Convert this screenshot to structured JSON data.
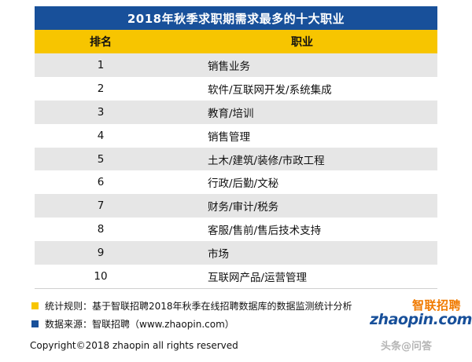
{
  "title": "2018年秋季求职期需求最多的十大职业",
  "headers": {
    "rank": "排名",
    "job": "职业"
  },
  "rows": [
    {
      "rank": "1",
      "job": "销售业务"
    },
    {
      "rank": "2",
      "job": "软件/互联网开发/系统集成"
    },
    {
      "rank": "3",
      "job": "教育/培训"
    },
    {
      "rank": "4",
      "job": "销售管理"
    },
    {
      "rank": "5",
      "job": "土木/建筑/装修/市政工程"
    },
    {
      "rank": "6",
      "job": "行政/后勤/文秘"
    },
    {
      "rank": "7",
      "job": "财务/审计/税务"
    },
    {
      "rank": "8",
      "job": "客服/售前/售后技术支持"
    },
    {
      "rank": "9",
      "job": "市场"
    },
    {
      "rank": "10",
      "job": "互联网产品/运营管理"
    }
  ],
  "notes": {
    "method": "统计规则：基于智联招聘2018年秋季在线招聘数据库的数据监测统计分析",
    "source": "数据来源：智联招聘（www.zhaopin.com）"
  },
  "copyright": "Copyright©2018 zhaopin all rights reserved",
  "logo": {
    "cn": "智联招聘",
    "en": "zhaopin.com"
  },
  "watermark": "头条@问答",
  "colors": {
    "title_bg": "#18509a",
    "header_bg": "#f7c500",
    "row_alt": "#e6e6e6",
    "note_yellow": "#f7c500",
    "note_blue": "#18509a",
    "logo_orange": "#f07a00"
  }
}
